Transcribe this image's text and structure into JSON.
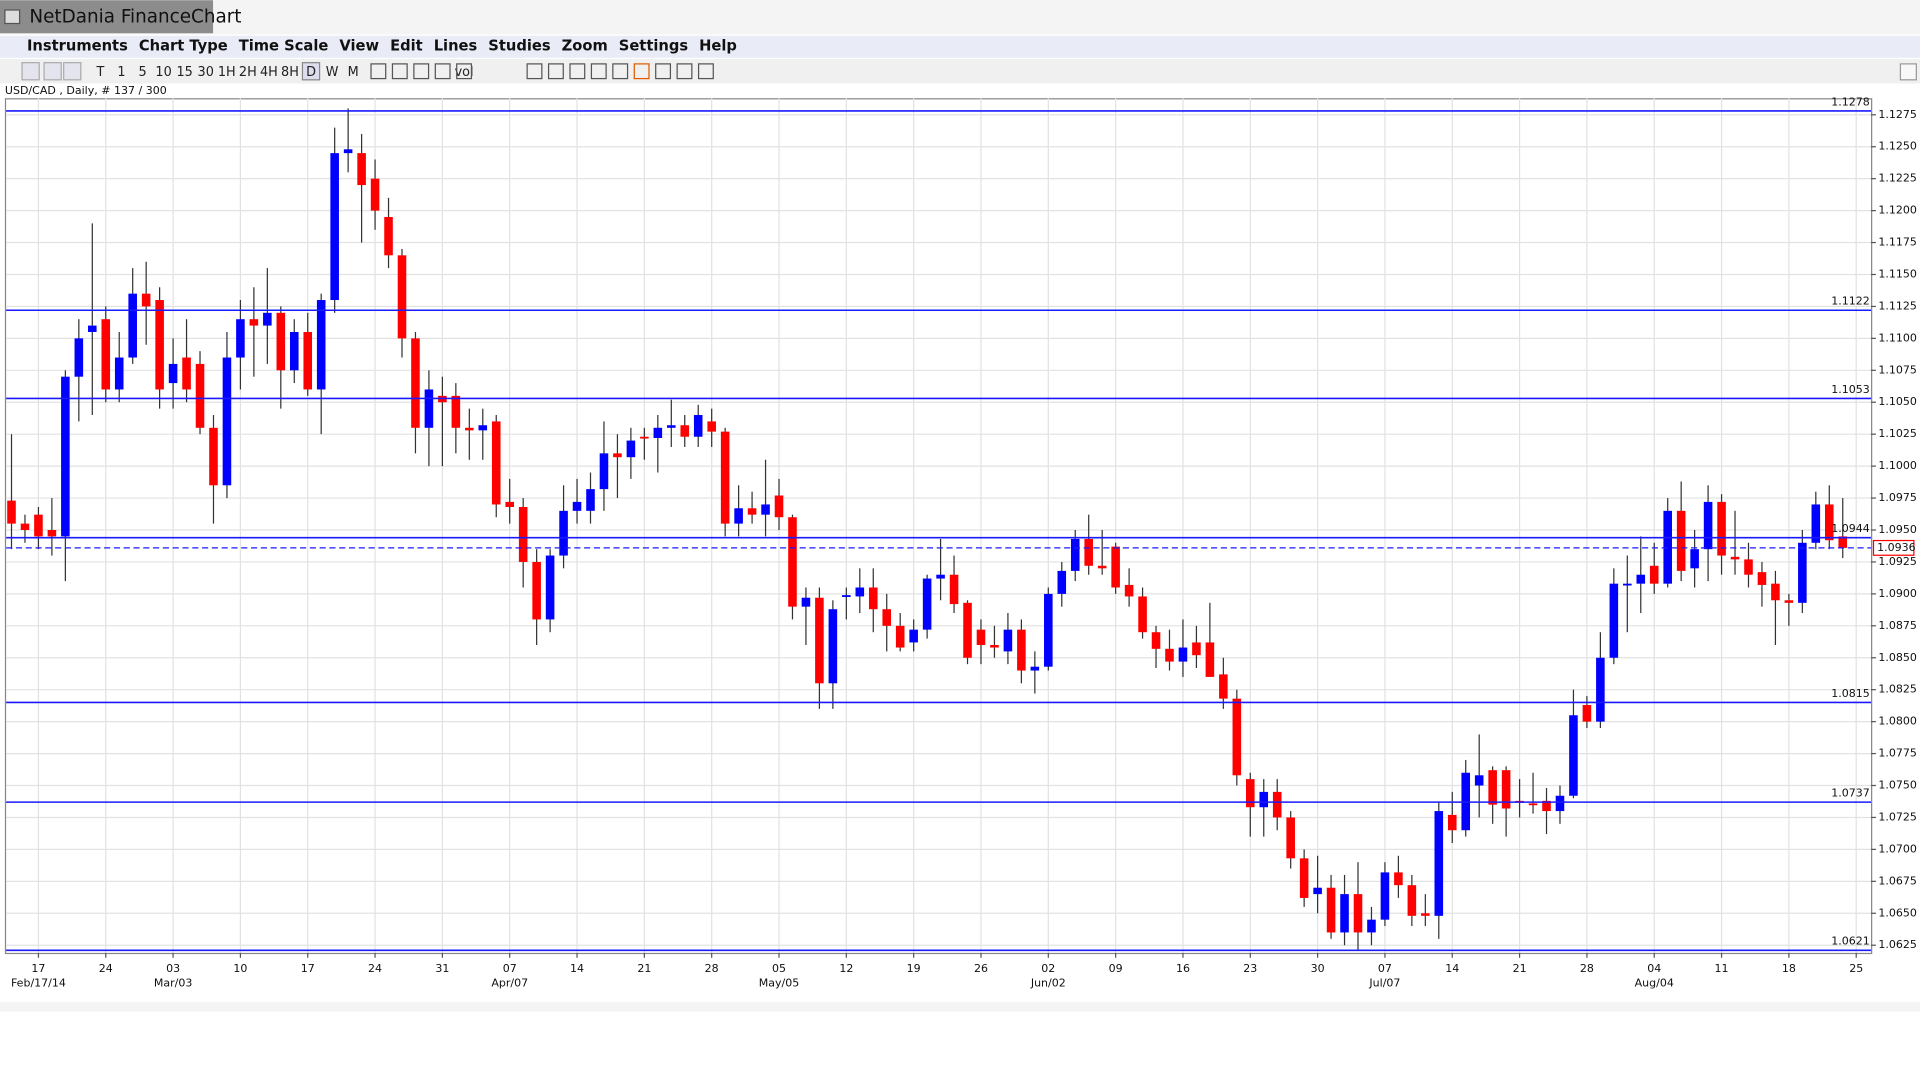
{
  "window": {
    "title": "NetDania FinanceChart"
  },
  "menu": [
    "Instruments",
    "Chart Type",
    "Time Scale",
    "View",
    "Edit",
    "Lines",
    "Studies",
    "Zoom",
    "Settings",
    "Help"
  ],
  "toolbar": [
    "T",
    "1",
    "5",
    "10",
    "15",
    "30",
    "1H",
    "2H",
    "4H",
    "8H",
    "D",
    "W",
    "M",
    "vol"
  ],
  "chart_data": {
    "type": "candlestick",
    "subtitle": "USD/CAD , Daily, # 137 / 300",
    "up_color": "#0000ff",
    "down_color": "#ff0000",
    "grid": true,
    "open": [
      1.0973,
      1.0955,
      1.0962,
      1.095,
      1.0945,
      1.107,
      1.1105,
      1.1115,
      1.106,
      1.1085,
      1.1135,
      1.113,
      1.1065,
      1.1085,
      1.108,
      1.103,
      1.0985,
      1.1085,
      1.1115,
      1.111,
      1.112,
      1.1075,
      1.1105,
      1.106,
      1.113,
      1.1245,
      1.1245,
      1.1225,
      1.1195,
      1.1165,
      1.11,
      1.103,
      1.1055,
      1.1055,
      1.103,
      1.1028,
      1.1035,
      1.0972,
      1.0968,
      1.0925,
      1.088,
      1.093,
      1.0965,
      1.0965,
      1.0982,
      1.101,
      1.1007,
      1.1023,
      1.1022,
      1.103,
      1.1032,
      1.1023,
      1.1035,
      1.1027,
      1.0955,
      1.0967,
      1.0962,
      1.0977,
      1.096,
      1.089,
      1.0897,
      1.083,
      1.0898,
      1.0898,
      1.0905,
      1.0888,
      1.0875,
      1.0862,
      1.0872,
      1.0912,
      1.0915,
      1.0893,
      1.0872,
      1.086,
      1.0855,
      1.0872,
      1.084,
      1.0843,
      1.09,
      1.0918,
      1.0943,
      1.0922,
      1.0937,
      1.0907,
      1.0898,
      1.087,
      1.0857,
      1.0847,
      1.0862,
      1.0862,
      1.0837,
      1.0818,
      1.0755,
      1.0733,
      1.0745,
      1.0725,
      1.0693,
      1.0665,
      1.067,
      1.0635,
      1.0665,
      1.0635,
      1.0645,
      1.0682,
      1.0672,
      1.065,
      1.0648,
      1.0727,
      1.0715,
      1.075,
      1.0762,
      1.0762,
      1.0738,
      1.0736,
      1.0738,
      1.073,
      1.0742,
      1.0813,
      1.08,
      1.085,
      1.0907,
      1.0908,
      1.0922,
      1.0908,
      1.0965,
      1.092,
      1.0935,
      1.0972,
      1.0929,
      1.0927,
      1.0917,
      1.0908,
      1.0895,
      1.0893,
      1.094,
      1.097,
      1.0945
    ],
    "high": [
      1.1025,
      1.0962,
      1.0968,
      1.0975,
      1.1075,
      1.1115,
      1.119,
      1.1125,
      1.1105,
      1.1155,
      1.116,
      1.114,
      1.11,
      1.1115,
      1.109,
      1.104,
      1.1105,
      1.113,
      1.114,
      1.1155,
      1.1125,
      1.1115,
      1.112,
      1.1135,
      1.1265,
      1.128,
      1.126,
      1.124,
      1.121,
      1.117,
      1.1105,
      1.1075,
      1.107,
      1.1065,
      1.1045,
      1.1045,
      1.104,
      1.099,
      1.0975,
      1.0935,
      1.0935,
      1.0985,
      1.099,
      1.0995,
      1.1035,
      1.1025,
      1.103,
      1.103,
      1.104,
      1.1052,
      1.104,
      1.1048,
      1.1045,
      1.103,
      1.0985,
      1.098,
      1.1005,
      1.099,
      1.0962,
      1.0905,
      1.0905,
      1.0895,
      1.0905,
      1.092,
      1.092,
      1.09,
      1.0885,
      1.088,
      1.0915,
      1.0943,
      1.093,
      1.0895,
      1.088,
      1.0875,
      1.0885,
      1.088,
      1.0855,
      1.0905,
      1.0925,
      1.095,
      1.0962,
      1.095,
      1.094,
      1.092,
      1.0905,
      1.0875,
      1.0872,
      1.088,
      1.0875,
      1.0893,
      1.085,
      1.0825,
      1.076,
      1.0755,
      1.0755,
      1.073,
      1.07,
      1.0695,
      1.068,
      1.068,
      1.069,
      1.0655,
      1.069,
      1.0695,
      1.068,
      1.0665,
      1.0737,
      1.0745,
      1.077,
      1.079,
      1.0765,
      1.0765,
      1.0755,
      1.076,
      1.0748,
      1.075,
      1.0825,
      1.082,
      1.087,
      1.092,
      1.093,
      1.0945,
      1.094,
      1.0975,
      1.0988,
      1.095,
      1.0985,
      1.0978,
      1.0965,
      1.094,
      1.0925,
      1.0918,
      1.09,
      1.095,
      1.098,
      1.0985,
      1.0975
    ],
    "low": [
      1.0935,
      1.094,
      1.0935,
      1.093,
      1.091,
      1.1035,
      1.104,
      1.105,
      1.105,
      1.108,
      1.1095,
      1.1045,
      1.1045,
      1.105,
      1.1025,
      1.0955,
      1.0975,
      1.106,
      1.107,
      1.108,
      1.1045,
      1.1065,
      1.1055,
      1.1025,
      1.112,
      1.123,
      1.1175,
      1.1185,
      1.1155,
      1.1085,
      1.101,
      1.1,
      1.1,
      1.101,
      1.1005,
      1.1005,
      1.096,
      1.0955,
      1.0905,
      1.086,
      1.087,
      1.092,
      1.0955,
      1.0955,
      1.0965,
      1.0975,
      1.099,
      1.1005,
      1.0995,
      1.1015,
      1.1015,
      1.1015,
      1.1015,
      1.0945,
      1.0945,
      1.0955,
      1.0945,
      1.095,
      1.088,
      1.086,
      1.081,
      1.081,
      1.088,
      1.0885,
      1.087,
      1.0855,
      1.0855,
      1.0855,
      1.0865,
      1.0895,
      1.0885,
      1.0845,
      1.0845,
      1.085,
      1.0845,
      1.083,
      1.0822,
      1.084,
      1.089,
      1.091,
      1.0915,
      1.0915,
      1.09,
      1.089,
      1.0865,
      1.0842,
      1.084,
      1.0835,
      1.0842,
      1.0835,
      1.081,
      1.075,
      1.071,
      1.071,
      1.0715,
      1.0685,
      1.0655,
      1.065,
      1.063,
      1.0625,
      1.0621,
      1.0625,
      1.064,
      1.0662,
      1.064,
      1.064,
      1.063,
      1.0705,
      1.071,
      1.0725,
      1.072,
      1.071,
      1.0725,
      1.0728,
      1.0712,
      1.072,
      1.074,
      1.0795,
      1.0795,
      1.0845,
      1.087,
      1.0885,
      1.09,
      1.0905,
      1.091,
      1.0905,
      1.091,
      1.0915,
      1.0915,
      1.0905,
      1.089,
      1.086,
      1.0875,
      1.0885,
      1.0935,
      1.0935,
      1.0928
    ],
    "close": [
      1.0955,
      1.095,
      1.0945,
      1.0945,
      1.107,
      1.11,
      1.111,
      1.106,
      1.1085,
      1.1135,
      1.1125,
      1.106,
      1.108,
      1.106,
      1.103,
      1.0985,
      1.1085,
      1.1115,
      1.111,
      1.112,
      1.1075,
      1.1105,
      1.106,
      1.113,
      1.1245,
      1.1248,
      1.122,
      1.12,
      1.1165,
      1.11,
      1.103,
      1.106,
      1.105,
      1.103,
      1.1028,
      1.1032,
      1.097,
      1.0968,
      1.0925,
      1.088,
      1.093,
      1.0965,
      1.0972,
      1.0982,
      1.101,
      1.1007,
      1.102,
      1.1022,
      1.103,
      1.1032,
      1.1023,
      1.104,
      1.1027,
      1.0955,
      1.0967,
      1.0962,
      1.097,
      1.096,
      1.089,
      1.0897,
      1.083,
      1.0888,
      1.0899,
      1.0905,
      1.0888,
      1.0875,
      1.0858,
      1.0872,
      1.0912,
      1.0915,
      1.0892,
      1.085,
      1.086,
      1.0858,
      1.0872,
      1.084,
      1.0843,
      1.09,
      1.0918,
      1.0943,
      1.0922,
      1.092,
      1.0905,
      1.0898,
      1.087,
      1.0857,
      1.0847,
      1.0858,
      1.0852,
      1.0835,
      1.0818,
      1.0758,
      1.0733,
      1.0745,
      1.0725,
      1.0693,
      1.0662,
      1.067,
      1.0635,
      1.0665,
      1.0635,
      1.0645,
      1.0682,
      1.0672,
      1.0648,
      1.0648,
      1.073,
      1.0715,
      1.076,
      1.0758,
      1.0735,
      1.0732,
      1.0737,
      1.0735,
      1.073,
      1.0742,
      1.0805,
      1.08,
      1.085,
      1.0908,
      1.0908,
      1.0915,
      1.0908,
      1.0965,
      1.0918,
      1.0935,
      1.0972,
      1.093,
      1.0927,
      1.0915,
      1.0907,
      1.0895,
      1.0893,
      1.094,
      1.097,
      1.0942,
      1.0936
    ],
    "xlim": [
      -0.4,
      138.1
    ],
    "xticks": [
      {
        "value": 2,
        "label": "17"
      },
      {
        "value": 7,
        "label": "24"
      },
      {
        "value": 12,
        "label": "03"
      },
      {
        "value": 17,
        "label": "10"
      },
      {
        "value": 22,
        "label": "17"
      },
      {
        "value": 27,
        "label": "24"
      },
      {
        "value": 32,
        "label": "31"
      },
      {
        "value": 37,
        "label": "07"
      },
      {
        "value": 42,
        "label": "14"
      },
      {
        "value": 47,
        "label": "21"
      },
      {
        "value": 52,
        "label": "28"
      },
      {
        "value": 57,
        "label": "05"
      },
      {
        "value": 62,
        "label": "12"
      },
      {
        "value": 67,
        "label": "19"
      },
      {
        "value": 72,
        "label": "26"
      },
      {
        "value": 77,
        "label": "02"
      },
      {
        "value": 82,
        "label": "09"
      },
      {
        "value": 87,
        "label": "16"
      },
      {
        "value": 92,
        "label": "23"
      },
      {
        "value": 97,
        "label": "30"
      },
      {
        "value": 102,
        "label": "07"
      },
      {
        "value": 107,
        "label": "14"
      },
      {
        "value": 112,
        "label": "21"
      },
      {
        "value": 117,
        "label": "28"
      },
      {
        "value": 122,
        "label": "04"
      },
      {
        "value": 127,
        "label": "11"
      },
      {
        "value": 132,
        "label": "18"
      },
      {
        "value": 137,
        "label": "25"
      }
    ],
    "date_labels": [
      {
        "value": 2,
        "label": "Feb/17/14"
      },
      {
        "value": 12,
        "label": "Mar/03"
      },
      {
        "value": 37,
        "label": "Apr/07"
      },
      {
        "value": 57,
        "label": "May/05"
      },
      {
        "value": 77,
        "label": "Jun/02"
      },
      {
        "value": 102,
        "label": "Jul/07"
      },
      {
        "value": 122,
        "label": "Aug/04"
      }
    ],
    "ylim": [
      1.0619,
      1.1288
    ],
    "yticks": [
      1.0625,
      {
        "value": 1.065,
        "label": "1.0650"
      },
      1.0675,
      {
        "value": 1.07,
        "label": "1.0700"
      },
      1.0725,
      {
        "value": 1.075,
        "label": "1.0750"
      },
      1.0775,
      {
        "value": 1.08,
        "label": "1.0800"
      },
      1.0825,
      {
        "value": 1.085,
        "label": "1.0850"
      },
      1.0875,
      {
        "value": 1.09,
        "label": "1.0900"
      },
      1.0925,
      {
        "value": 1.095,
        "label": "1.0950"
      },
      1.0975,
      {
        "value": 1.1,
        "label": "1.1000"
      },
      1.1025,
      {
        "value": 1.105,
        "label": "1.1050"
      },
      1.1075,
      {
        "value": 1.11,
        "label": "1.1100"
      },
      1.1125,
      {
        "value": 1.115,
        "label": "1.1150"
      },
      1.1175,
      {
        "value": 1.12,
        "label": "1.1200"
      },
      1.1225,
      {
        "value": 1.125,
        "label": "1.1250"
      },
      1.1275
    ],
    "levels": [
      1.1278,
      1.1122,
      1.1053,
      1.0944,
      1.0815,
      1.0737,
      1.0621
    ],
    "level_color": "#1a1aff",
    "last_price": 1.0936
  }
}
